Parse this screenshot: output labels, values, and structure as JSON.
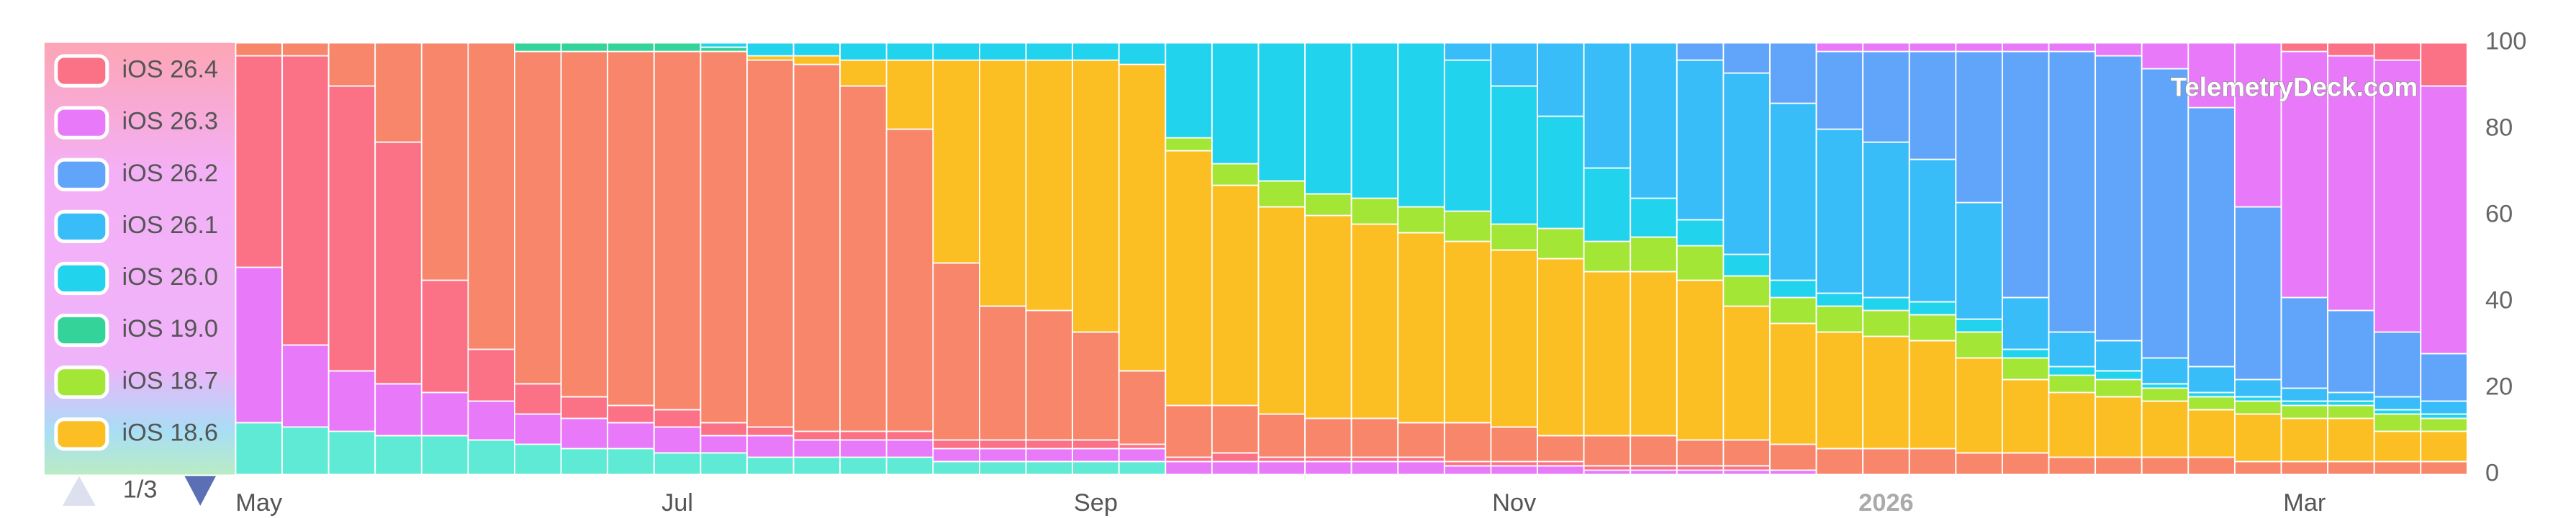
{
  "chart_data": {
    "type": "stacked-bar",
    "watermark": "TelemetryDeck.com",
    "legend_page": "1/3",
    "legend": "top-left",
    "grid": false,
    "ylim": [
      0,
      100
    ],
    "yticks": [
      0,
      20,
      40,
      60,
      80,
      100
    ],
    "categories": [
      "May",
      null,
      null,
      null,
      null,
      null,
      null,
      null,
      null,
      "Jul",
      null,
      null,
      null,
      null,
      null,
      null,
      null,
      null,
      "Sep",
      null,
      null,
      null,
      null,
      null,
      null,
      null,
      null,
      "Nov",
      null,
      null,
      null,
      null,
      null,
      null,
      null,
      "2026",
      null,
      null,
      null,
      null,
      null,
      null,
      null,
      null,
      "Mar",
      null,
      null,
      null
    ],
    "series": [
      {
        "color": "#5eead4",
        "values": [
          12,
          11,
          10,
          9,
          9,
          8,
          7,
          6,
          6,
          5,
          5,
          4,
          4,
          4,
          4,
          3,
          3,
          3,
          3,
          3,
          0,
          0,
          0,
          0,
          0,
          0,
          0,
          0,
          0,
          0,
          0,
          0,
          0,
          0,
          0,
          0,
          0,
          0,
          0,
          0,
          0,
          0,
          0,
          0,
          0,
          0,
          0,
          0
        ]
      },
      {
        "color": "#e879f9",
        "values": [
          36,
          19,
          14,
          12,
          10,
          9,
          7,
          7,
          6,
          6,
          4,
          5,
          4,
          4,
          4,
          3,
          3,
          3,
          3,
          3,
          3,
          3,
          3,
          3,
          3,
          3,
          2,
          2,
          2,
          1,
          1,
          1,
          1,
          1,
          0,
          0,
          0,
          0,
          0,
          0,
          0,
          0,
          0,
          0,
          0,
          0,
          0,
          0
        ]
      },
      {
        "color": "#fb7185",
        "values": [
          49,
          67,
          66,
          56,
          26,
          12,
          7,
          5,
          4,
          4,
          3,
          2,
          2,
          2,
          2,
          2,
          2,
          2,
          2,
          1,
          1,
          2,
          1,
          1,
          1,
          1,
          1,
          1,
          1,
          1,
          1,
          1,
          1,
          0,
          0,
          0,
          0,
          0,
          0,
          0,
          0,
          0,
          0,
          0,
          0,
          0,
          0,
          0
        ]
      },
      {
        "color": "#f7866a",
        "values": [
          3,
          3,
          10,
          23,
          55,
          71,
          77,
          80,
          82,
          83,
          86,
          85,
          85,
          80,
          70,
          41,
          31,
          30,
          25,
          17,
          12,
          11,
          10,
          9,
          9,
          8,
          9,
          8,
          6,
          7,
          7,
          6,
          6,
          6,
          6,
          6,
          6,
          5,
          5,
          4,
          4,
          4,
          4,
          3,
          3,
          3,
          3,
          3
        ]
      },
      {
        "name": "iOS 18.6",
        "color": "#fbbf24",
        "values": [
          0,
          0,
          0,
          0,
          0,
          0,
          0,
          0,
          0,
          0,
          0,
          1,
          2,
          6,
          16,
          47,
          57,
          58,
          63,
          71,
          59,
          51,
          48,
          47,
          45,
          44,
          42,
          41,
          41,
          38,
          38,
          37,
          31,
          28,
          27,
          26,
          25,
          22,
          17,
          15,
          14,
          13,
          11,
          11,
          10,
          10,
          7,
          7
        ]
      },
      {
        "name": "iOS 18.7",
        "color": "#a3e635",
        "values": [
          0,
          0,
          0,
          0,
          0,
          0,
          0,
          0,
          0,
          0,
          0,
          0,
          0,
          0,
          0,
          0,
          0,
          0,
          0,
          0,
          3,
          5,
          6,
          5,
          6,
          6,
          7,
          6,
          7,
          7,
          8,
          8,
          7,
          6,
          6,
          6,
          6,
          6,
          5,
          4,
          4,
          3,
          3,
          3,
          3,
          3,
          4,
          3
        ]
      },
      {
        "name": "iOS 19.0",
        "color": "#34d399",
        "values": [
          0,
          0,
          0,
          0,
          0,
          0,
          2,
          2,
          2,
          2,
          1,
          0,
          0,
          0,
          0,
          0,
          0,
          0,
          0,
          0,
          0,
          0,
          0,
          0,
          0,
          0,
          0,
          0,
          0,
          0,
          0,
          0,
          0,
          0,
          0,
          0,
          0,
          0,
          0,
          0,
          0,
          0,
          0,
          0,
          0,
          0,
          0,
          0
        ]
      },
      {
        "name": "iOS 26.0",
        "color": "#22d3ee",
        "values": [
          0,
          0,
          0,
          0,
          0,
          0,
          0,
          0,
          0,
          0,
          1,
          3,
          3,
          4,
          4,
          4,
          4,
          4,
          4,
          5,
          22,
          28,
          32,
          35,
          36,
          38,
          35,
          32,
          26,
          17,
          9,
          6,
          5,
          4,
          3,
          3,
          3,
          3,
          2,
          2,
          2,
          1,
          1,
          1,
          1,
          1,
          1,
          1
        ]
      },
      {
        "name": "iOS 26.1",
        "color": "#38bdf8",
        "values": [
          0,
          0,
          0,
          0,
          0,
          0,
          0,
          0,
          0,
          0,
          0,
          0,
          0,
          0,
          0,
          0,
          0,
          0,
          0,
          0,
          0,
          0,
          0,
          0,
          0,
          0,
          4,
          10,
          17,
          29,
          36,
          37,
          42,
          41,
          38,
          36,
          33,
          27,
          12,
          8,
          7,
          6,
          6,
          4,
          3,
          2,
          3,
          3
        ]
      },
      {
        "name": "iOS 26.2",
        "color": "#60a5fa",
        "values": [
          0,
          0,
          0,
          0,
          0,
          0,
          0,
          0,
          0,
          0,
          0,
          0,
          0,
          0,
          0,
          0,
          0,
          0,
          0,
          0,
          0,
          0,
          0,
          0,
          0,
          0,
          0,
          0,
          0,
          0,
          0,
          4,
          7,
          14,
          18,
          21,
          25,
          35,
          57,
          65,
          66,
          67,
          60,
          40,
          21,
          19,
          15,
          11
        ]
      },
      {
        "name": "iOS 26.3",
        "color": "#e879f9",
        "values": [
          0,
          0,
          0,
          0,
          0,
          0,
          0,
          0,
          0,
          0,
          0,
          0,
          0,
          0,
          0,
          0,
          0,
          0,
          0,
          0,
          0,
          0,
          0,
          0,
          0,
          0,
          0,
          0,
          0,
          0,
          0,
          0,
          0,
          0,
          2,
          2,
          2,
          2,
          2,
          2,
          3,
          6,
          15,
          38,
          57,
          59,
          63,
          62
        ]
      },
      {
        "name": "iOS 26.4",
        "color": "#fb7185",
        "values": [
          0,
          0,
          0,
          0,
          0,
          0,
          0,
          0,
          0,
          0,
          0,
          0,
          0,
          0,
          0,
          0,
          0,
          0,
          0,
          0,
          0,
          0,
          0,
          0,
          0,
          0,
          0,
          0,
          0,
          0,
          0,
          0,
          0,
          0,
          0,
          0,
          0,
          0,
          0,
          0,
          0,
          0,
          0,
          0,
          2,
          3,
          4,
          10
        ]
      }
    ]
  }
}
